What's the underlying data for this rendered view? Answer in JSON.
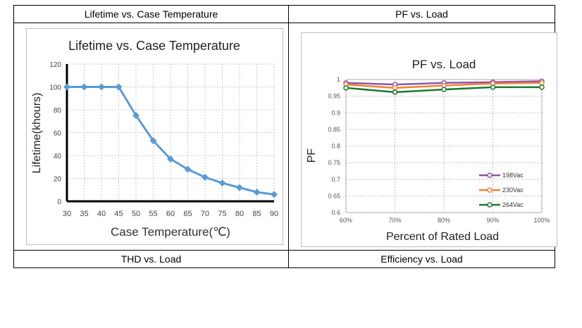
{
  "cells": {
    "top_left": "Lifetime vs. Case Temperature",
    "top_right": "PF vs. Load",
    "bottom_left": "THD vs. Load",
    "bottom_right": "Efficiency vs. Load"
  },
  "chart_data": [
    {
      "type": "line",
      "title": "Lifetime vs. Case Temperature",
      "xlabel": "Case Temperature(℃)",
      "ylabel": "Lifetime(khours)",
      "x": [
        30,
        35,
        40,
        45,
        50,
        55,
        60,
        65,
        70,
        75,
        80,
        85,
        90
      ],
      "series": [
        {
          "name": "Lifetime",
          "values": [
            100,
            100,
            100,
            100,
            75,
            53,
            37,
            28,
            21,
            16,
            12,
            8,
            6
          ]
        }
      ],
      "xlim": [
        30,
        90
      ],
      "ylim": [
        0,
        120
      ],
      "xticks": [
        30,
        35,
        40,
        45,
        50,
        55,
        60,
        65,
        70,
        75,
        80,
        85,
        90
      ],
      "yticks": [
        0,
        20,
        40,
        60,
        80,
        100,
        120
      ],
      "color": "#5b9bd5",
      "grid": true
    },
    {
      "type": "line",
      "title": "PF vs. Load",
      "xlabel": "Percent of Rated Load",
      "ylabel": "PF",
      "categories": [
        "60%",
        "70%",
        "80%",
        "90%",
        "100%"
      ],
      "yticks": [
        "0.6",
        "0.65",
        "0.7",
        "0.75",
        "0.8",
        "0.85",
        "0.9",
        "0.95",
        "1"
      ],
      "ylim": [
        0.6,
        1.0
      ],
      "legend_position": "right",
      "series": [
        {
          "name": "198Vac",
          "color": "#8e52b0",
          "values": [
            0.99,
            0.985,
            0.99,
            0.992,
            0.995
          ]
        },
        {
          "name": "230Vac",
          "color": "#f08133",
          "values": [
            0.985,
            0.975,
            0.982,
            0.988,
            0.99
          ]
        },
        {
          "name": "264Vac",
          "color": "#1b7a2e",
          "values": [
            0.975,
            0.962,
            0.97,
            0.977,
            0.977
          ]
        }
      ],
      "grid": true
    }
  ]
}
